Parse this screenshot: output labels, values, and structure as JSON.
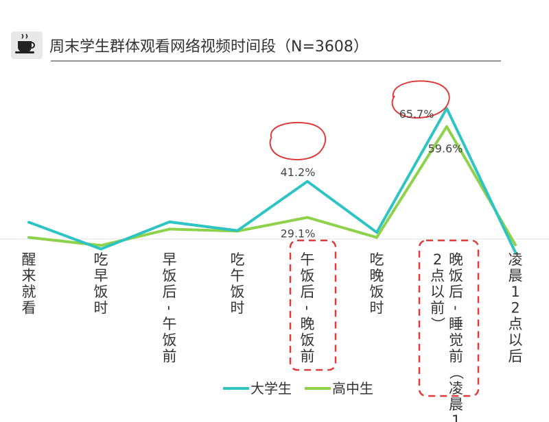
{
  "chart_data": {
    "type": "line",
    "title": "周末学生群体观看网络视频时间段（N=3608）",
    "categories": [
      "醒来就看",
      "吃早饭时",
      "早饭后-午饭前",
      "吃午饭时",
      "午饭后-晚饭前",
      "吃晚饭时",
      "晚饭后-睡觉前（凌晨12点以前）",
      "凌晨12点以后"
    ],
    "series": [
      {
        "name": "大学生",
        "color": "#2ec4c4",
        "values": [
          27.5,
          18.5,
          27.6,
          24.7,
          41.2,
          24.1,
          65.7,
          17.4
        ]
      },
      {
        "name": "高中生",
        "color": "#8ed14a",
        "values": [
          22.4,
          19.7,
          25.2,
          24.5,
          29.1,
          22.4,
          59.6,
          19.9
        ]
      }
    ],
    "data_labels": [
      {
        "series": 0,
        "index": 4,
        "text": "41.2%"
      },
      {
        "series": 1,
        "index": 4,
        "text": "29.1%"
      },
      {
        "series": 0,
        "index": 6,
        "text": "65.7%"
      },
      {
        "series": 1,
        "index": 6,
        "text": "59.6%"
      }
    ],
    "legend": {
      "placement": "bottom"
    },
    "grid": false,
    "xlabel": "",
    "ylabel": ""
  }
}
